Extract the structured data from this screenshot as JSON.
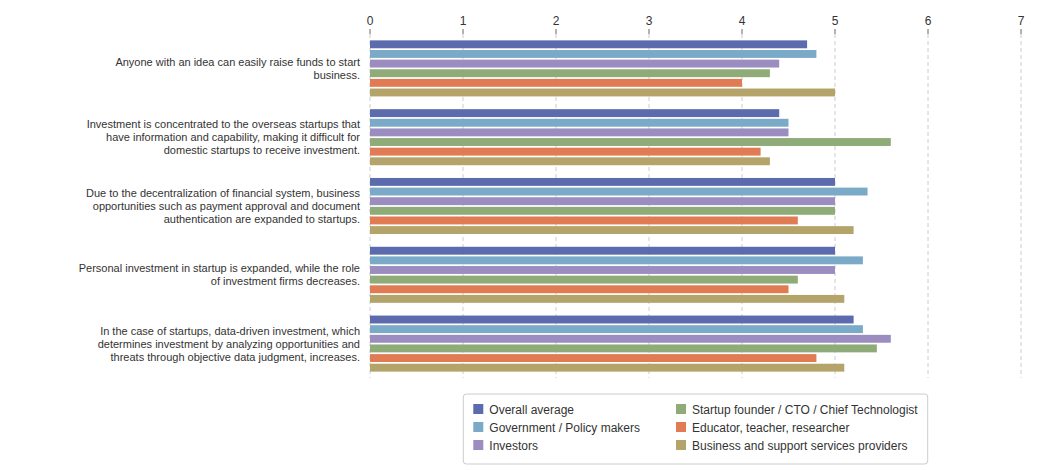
{
  "chart_data": {
    "type": "bar",
    "orientation": "horizontal",
    "categories": [
      "Anyone with an idea can easily raise funds to start\nbusiness.",
      "Investment is concentrated to the overseas startups that\nhave information and capability, making it difficult for\ndomestic startups to receive investment.",
      "Due to the decentralization of financial system, business\nopportunities such as payment approval and document\nauthentication are expanded to startups.",
      "Personal investment in startup is expanded, while the role\nof investment firms decreases.",
      "In the case of startups, data-driven investment, which\ndetermines investment by analyzing opportunities and\nthreats through objective data judgment, increases."
    ],
    "series": [
      {
        "name": "Overall average",
        "color": "#5C6BAD",
        "values": [
          4.7,
          4.4,
          5.0,
          5.0,
          5.2
        ]
      },
      {
        "name": "Government / Policy makers",
        "color": "#7AAAC8",
        "values": [
          4.8,
          4.5,
          5.35,
          5.3,
          5.3
        ]
      },
      {
        "name": "Investors",
        "color": "#9B8DC0",
        "values": [
          4.4,
          4.5,
          5.0,
          5.0,
          5.6
        ]
      },
      {
        "name": "Startup founder / CTO / Chief Technologist",
        "color": "#8EAB78",
        "values": [
          4.3,
          5.6,
          5.0,
          4.6,
          5.45
        ]
      },
      {
        "name": "Educator, teacher, researcher",
        "color": "#E07B54",
        "values": [
          4.0,
          4.2,
          4.6,
          4.5,
          4.8
        ]
      },
      {
        "name": "Business and support services providers",
        "color": "#B5A46A",
        "values": [
          5.0,
          4.3,
          5.2,
          5.1,
          5.1
        ]
      }
    ],
    "xlim": [
      0,
      7
    ],
    "xticks": [
      0,
      1,
      2,
      3,
      4,
      5,
      6,
      7
    ],
    "grid": true,
    "legend": "bottom"
  }
}
